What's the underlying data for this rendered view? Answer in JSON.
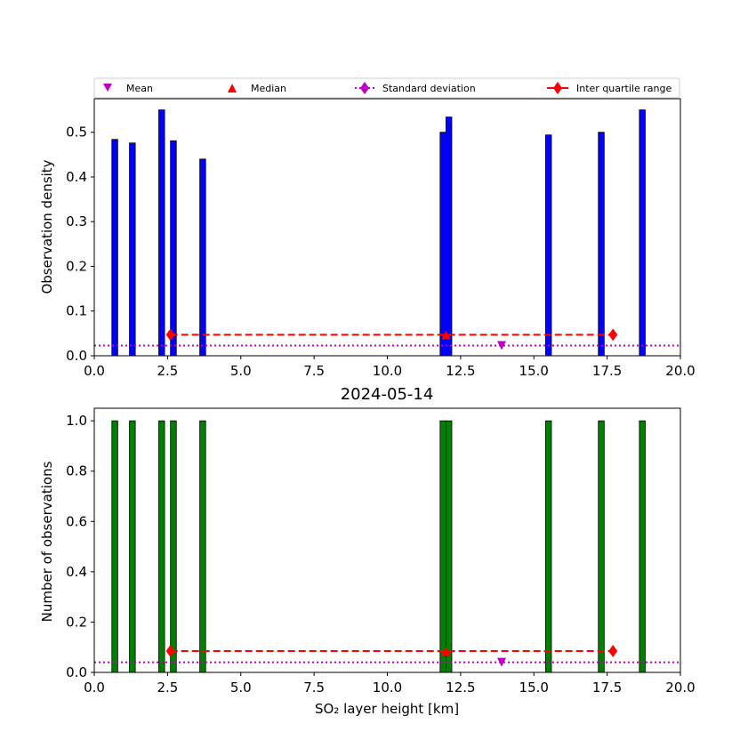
{
  "chart_data": [
    {
      "type": "bar",
      "panel": "top",
      "title": "",
      "xlabel": "",
      "ylabel": "Observation density",
      "xlim": [
        0,
        20
      ],
      "ylim": [
        0,
        0.575
      ],
      "xticks": [
        0,
        2.5,
        5,
        7.5,
        10,
        12.5,
        15,
        17.5,
        20
      ],
      "xtick_labels": [
        "0.0",
        "2.5",
        "5.0",
        "7.5",
        "10.0",
        "12.5",
        "15.0",
        "17.5",
        "20.0"
      ],
      "yticks": [
        0,
        0.1,
        0.2,
        0.3,
        0.4,
        0.5
      ],
      "ytick_labels": [
        "0.0",
        "0.1",
        "0.2",
        "0.3",
        "0.4",
        "0.5"
      ],
      "bar_color": "#0000ff",
      "bar_width": 0.2,
      "bars": [
        {
          "x": 0.7,
          "value": 0.484
        },
        {
          "x": 1.3,
          "value": 0.476
        },
        {
          "x": 2.3,
          "value": 0.55
        },
        {
          "x": 2.7,
          "value": 0.481
        },
        {
          "x": 3.7,
          "value": 0.44
        },
        {
          "x": 11.9,
          "value": 0.5
        },
        {
          "x": 12.1,
          "value": 0.534
        },
        {
          "x": 15.5,
          "value": 0.494
        },
        {
          "x": 17.3,
          "value": 0.5
        },
        {
          "x": 18.7,
          "value": 0.55
        }
      ],
      "stats": {
        "mean": 13.9,
        "median": 12.0,
        "q1": 2.6,
        "q3": 17.7,
        "marker_y": 0.047,
        "std_y": 0.023,
        "mean_y": 0.023
      }
    },
    {
      "type": "bar",
      "panel": "bottom",
      "title": "2024-05-14",
      "xlabel": "SO₂ layer height [km]",
      "ylabel": "Number of observations",
      "xlim": [
        0,
        20
      ],
      "ylim": [
        0,
        1.05
      ],
      "xticks": [
        0,
        2.5,
        5,
        7.5,
        10,
        12.5,
        15,
        17.5,
        20
      ],
      "xtick_labels": [
        "0.0",
        "2.5",
        "5.0",
        "7.5",
        "10.0",
        "12.5",
        "15.0",
        "17.5",
        "20.0"
      ],
      "yticks": [
        0,
        0.2,
        0.4,
        0.6,
        0.8,
        1.0
      ],
      "ytick_labels": [
        "0.0",
        "0.2",
        "0.4",
        "0.6",
        "0.8",
        "1.0"
      ],
      "bar_color": "#008000",
      "bar_width": 0.2,
      "bars": [
        {
          "x": 0.7,
          "value": 1
        },
        {
          "x": 1.3,
          "value": 1
        },
        {
          "x": 2.3,
          "value": 1
        },
        {
          "x": 2.7,
          "value": 1
        },
        {
          "x": 3.7,
          "value": 1
        },
        {
          "x": 11.9,
          "value": 1
        },
        {
          "x": 12.1,
          "value": 1
        },
        {
          "x": 15.5,
          "value": 1
        },
        {
          "x": 17.3,
          "value": 1
        },
        {
          "x": 18.7,
          "value": 1
        }
      ],
      "stats": {
        "mean": 13.9,
        "median": 12.0,
        "q1": 2.6,
        "q3": 17.7,
        "marker_y": 0.085,
        "std_y": 0.04,
        "mean_y": 0.04
      }
    }
  ],
  "legend": {
    "placement": "top",
    "entries": [
      {
        "label": "Mean",
        "marker": "triangle-down",
        "color": "#bf00bf"
      },
      {
        "label": "Median",
        "marker": "triangle-up",
        "color": "#ff0000"
      },
      {
        "label": "Standard deviation",
        "marker": "diamond-dotted-line",
        "color": "#bf00bf"
      },
      {
        "label": "Inter quartile range",
        "marker": "diamond-dashed-line",
        "color": "#ff0000"
      }
    ]
  }
}
